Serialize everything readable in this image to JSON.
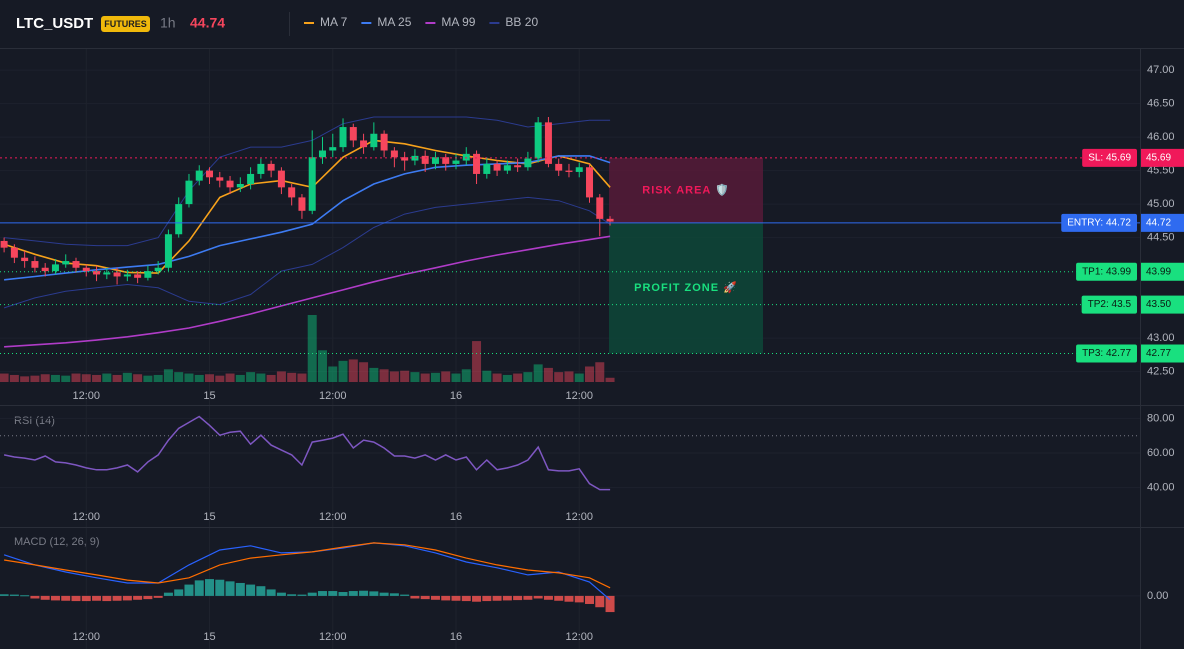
{
  "chart_data": {
    "type": "candlestick",
    "symbol": "LTC_USDT",
    "badge": "FUTURES",
    "interval": "1h",
    "last_price": 44.74,
    "x": [
      0,
      1,
      2,
      3,
      4,
      5,
      6,
      7,
      8,
      9,
      10,
      11,
      12,
      13,
      14,
      15,
      16,
      17,
      18,
      19,
      20,
      21,
      22,
      23,
      24,
      25,
      26,
      27,
      28,
      29,
      30,
      31,
      32,
      33,
      34,
      35,
      36,
      37,
      38,
      39,
      40,
      41,
      42,
      43,
      44,
      45,
      46,
      47,
      48,
      49,
      50,
      51,
      52,
      53,
      54,
      55,
      56,
      57,
      58,
      59
    ],
    "xlim": [
      -0.4,
      110.6
    ],
    "xticks": [
      {
        "value": 8,
        "label": "12:00"
      },
      {
        "value": 20,
        "label": "15"
      },
      {
        "value": 32,
        "label": "12:00"
      },
      {
        "value": 44,
        "label": "16"
      },
      {
        "value": 56,
        "label": "12:00"
      }
    ],
    "ylim": [
      42.3,
      47.3
    ],
    "yticks": [
      {
        "value": 47,
        "label": "47.00"
      },
      {
        "value": 46.5,
        "label": "46.50"
      },
      {
        "value": 46,
        "label": "46.00"
      },
      {
        "value": 45.5,
        "label": "45.50"
      },
      {
        "value": 45,
        "label": "45.00"
      },
      {
        "value": 44.5,
        "label": "44.50"
      },
      {
        "value": 43,
        "label": "43.00"
      },
      {
        "value": 42.5,
        "label": "42.50"
      }
    ],
    "up_color": "#0ecb81",
    "down_color": "#f6465d",
    "open": [
      44.45,
      44.35,
      44.2,
      44.15,
      44.05,
      44.0,
      44.1,
      44.15,
      44.05,
      44.0,
      43.95,
      43.98,
      43.92,
      43.95,
      43.9,
      44.0,
      44.05,
      44.55,
      45.0,
      45.35,
      45.5,
      45.4,
      45.35,
      45.25,
      45.3,
      45.45,
      45.6,
      45.5,
      45.25,
      45.1,
      44.9,
      45.7,
      45.8,
      45.85,
      46.15,
      45.95,
      45.85,
      46.05,
      45.8,
      45.7,
      45.65,
      45.72,
      45.6,
      45.7,
      45.6,
      45.65,
      45.75,
      45.45,
      45.6,
      45.5,
      45.58,
      45.55,
      45.68,
      46.22,
      45.6,
      45.5,
      45.48,
      45.55,
      45.1,
      44.78
    ],
    "high": [
      44.5,
      44.4,
      44.3,
      44.22,
      44.12,
      44.18,
      44.25,
      44.2,
      44.1,
      44.08,
      44.05,
      44.05,
      44.02,
      44.0,
      44.08,
      44.15,
      44.62,
      45.1,
      45.45,
      45.58,
      45.55,
      45.48,
      45.42,
      45.4,
      45.55,
      45.68,
      45.65,
      45.55,
      45.3,
      45.15,
      46.1,
      46.0,
      46.05,
      46.28,
      46.2,
      46.05,
      46.22,
      46.1,
      45.85,
      45.78,
      45.82,
      45.8,
      45.78,
      45.75,
      45.75,
      45.85,
      45.8,
      45.7,
      45.65,
      45.65,
      45.68,
      45.78,
      46.3,
      46.3,
      45.68,
      45.6,
      45.62,
      45.6,
      45.15,
      44.82
    ],
    "low": [
      44.28,
      44.12,
      44.05,
      43.98,
      43.92,
      43.95,
      44.05,
      43.98,
      43.92,
      43.85,
      43.88,
      43.8,
      43.85,
      43.82,
      43.86,
      43.95,
      44.0,
      44.5,
      44.95,
      45.28,
      45.3,
      45.25,
      45.15,
      45.18,
      45.22,
      45.38,
      45.4,
      45.15,
      44.98,
      44.78,
      44.85,
      45.6,
      45.7,
      45.78,
      45.85,
      45.75,
      45.8,
      45.7,
      45.55,
      45.5,
      45.58,
      45.48,
      45.52,
      45.5,
      45.52,
      45.58,
      45.3,
      45.38,
      45.42,
      45.45,
      45.48,
      45.5,
      45.62,
      45.55,
      45.42,
      45.4,
      45.4,
      45.02,
      44.52,
      44.68
    ],
    "close": [
      44.35,
      44.2,
      44.15,
      44.05,
      44.0,
      44.1,
      44.15,
      44.05,
      44.0,
      43.95,
      43.98,
      43.92,
      43.95,
      43.9,
      44.0,
      44.05,
      44.55,
      45.0,
      45.35,
      45.5,
      45.4,
      45.35,
      45.25,
      45.3,
      45.45,
      45.6,
      45.5,
      45.25,
      45.1,
      44.9,
      45.7,
      45.8,
      45.85,
      46.15,
      45.95,
      45.85,
      46.05,
      45.8,
      45.7,
      45.65,
      45.72,
      45.6,
      45.7,
      45.6,
      45.65,
      45.75,
      45.45,
      45.6,
      45.5,
      45.58,
      45.55,
      45.68,
      46.22,
      45.6,
      45.5,
      45.48,
      45.55,
      45.1,
      44.78,
      44.74
    ],
    "volume": [
      12,
      10,
      8,
      9,
      11,
      10,
      9,
      12,
      11,
      10,
      12,
      10,
      13,
      11,
      9,
      10,
      18,
      14,
      12,
      10,
      11,
      9,
      12,
      10,
      14,
      12,
      10,
      15,
      13,
      12,
      95,
      45,
      22,
      30,
      32,
      28,
      20,
      18,
      15,
      16,
      14,
      12,
      13,
      15,
      12,
      18,
      58,
      16,
      12,
      10,
      12,
      14,
      25,
      20,
      14,
      15,
      12,
      22,
      28,
      6
    ],
    "overlays": [
      {
        "name": "MA 7",
        "color": "#f7a21b",
        "x": [
          0,
          3,
          6,
          9,
          12,
          15,
          18,
          21,
          24,
          27,
          30,
          33,
          36,
          39,
          42,
          45,
          48,
          51,
          54,
          57,
          59
        ],
        "values": [
          44.4,
          44.25,
          44.12,
          44.08,
          43.98,
          43.97,
          44.45,
          45.1,
          45.3,
          45.35,
          45.25,
          45.7,
          45.95,
          45.9,
          45.8,
          45.72,
          45.65,
          45.6,
          45.72,
          45.6,
          45.25
        ]
      },
      {
        "name": "MA 25",
        "color": "#3d7bf2",
        "x": [
          0,
          3,
          6,
          9,
          12,
          15,
          18,
          21,
          24,
          27,
          30,
          33,
          36,
          39,
          42,
          45,
          48,
          51,
          54,
          57,
          59
        ],
        "values": [
          43.87,
          43.92,
          43.97,
          44.02,
          44.06,
          44.1,
          44.22,
          44.38,
          44.48,
          44.58,
          44.7,
          45.05,
          45.3,
          45.45,
          45.55,
          45.58,
          45.6,
          45.62,
          45.72,
          45.72,
          45.62
        ]
      },
      {
        "name": "MA 99",
        "color": "#b03cc8",
        "x": [
          0,
          3,
          6,
          9,
          12,
          15,
          18,
          21,
          24,
          27,
          30,
          33,
          36,
          39,
          42,
          45,
          48,
          51,
          54,
          57,
          59
        ],
        "values": [
          42.87,
          42.9,
          42.93,
          42.97,
          43.02,
          43.08,
          43.15,
          43.25,
          43.36,
          43.48,
          43.6,
          43.72,
          43.84,
          43.95,
          44.05,
          44.15,
          44.24,
          44.32,
          44.4,
          44.47,
          44.52
        ]
      },
      {
        "name": "BB 20",
        "color": "#2b3b8f",
        "x": [
          0,
          3,
          6,
          9,
          12,
          15,
          18,
          21,
          24,
          27,
          30,
          33,
          36,
          39,
          42,
          45,
          48,
          51,
          54,
          57,
          59
        ],
        "upper": [
          44.5,
          44.45,
          44.4,
          44.38,
          44.38,
          44.5,
          45.2,
          45.7,
          45.85,
          45.85,
          45.95,
          46.2,
          46.3,
          46.3,
          46.3,
          46.3,
          46.25,
          46.15,
          46.2,
          46.25,
          46.25
        ],
        "lower": [
          43.45,
          43.6,
          43.7,
          43.75,
          43.8,
          43.75,
          43.55,
          43.5,
          43.65,
          44.0,
          44.1,
          44.35,
          44.65,
          44.85,
          44.95,
          45.0,
          45.05,
          45.1,
          45.05,
          44.9,
          44.7
        ]
      }
    ],
    "levels": [
      {
        "label": "SL: 45.69",
        "value": 45.69,
        "value_label": "45.69",
        "color": "#f0195a",
        "text_color": "#ffffff",
        "line_style": "dashed"
      },
      {
        "label": "ENTRY: 44.72",
        "value": 44.72,
        "value_label": "44.72",
        "color": "#2f6bf0",
        "text_color": "#ffffff",
        "line_style": "solid"
      },
      {
        "label": "TP1: 43.99",
        "value": 43.99,
        "value_label": "43.99",
        "color": "#19e07f",
        "text_color": "#0b1a12",
        "line_style": "dotted"
      },
      {
        "label": "TP2: 43.5",
        "value": 43.5,
        "value_label": "43.50",
        "color": "#19e07f",
        "text_color": "#0b1a12",
        "line_style": "dotted"
      },
      {
        "label": "TP3: 42.77",
        "value": 42.77,
        "value_label": "42.77",
        "color": "#19e07f",
        "text_color": "#0b1a12",
        "line_style": "dotted"
      }
    ],
    "zones": [
      {
        "label": "RISK AREA 🛡️",
        "from": 45.69,
        "to": 44.72,
        "color": "#f0195a",
        "fill": "#5a1a3a"
      },
      {
        "label": "PROFIT ZONE 🚀",
        "from": 44.72,
        "to": 42.77,
        "color": "#19e07f",
        "fill": "#0c4a3a"
      }
    ],
    "rsi": {
      "title": "RSI (14)",
      "color": "#7e57c2",
      "level": 70,
      "ylim": [
        30,
        86
      ],
      "yticks": [
        {
          "value": 80,
          "label": "80.00"
        },
        {
          "value": 60,
          "label": "60.00"
        },
        {
          "value": 40,
          "label": "40.00"
        }
      ],
      "values": [
        58.9,
        57.7,
        57.1,
        56.0,
        58.3,
        54.9,
        54.3,
        53.1,
        51.4,
        50.3,
        50.3,
        51.4,
        53.1,
        49.1,
        54.9,
        58.9,
        67.4,
        74.3,
        77.7,
        81.1,
        76.0,
        70.3,
        72.0,
        72.6,
        65.1,
        70.3,
        64.6,
        61.7,
        58.9,
        53.1,
        66.3,
        67.4,
        68.6,
        70.9,
        62.9,
        67.4,
        66.3,
        62.9,
        58.3,
        58.3,
        57.1,
        58.9,
        56.0,
        58.9,
        56.0,
        57.7,
        50.3,
        56.0,
        50.3,
        51.4,
        53.1,
        56.0,
        63.4,
        50.3,
        49.7,
        49.7,
        50.9,
        42.3,
        38.9,
        38.9
      ]
    },
    "macd": {
      "title": "MACD (12, 26, 9)",
      "ylim": [
        -0.09,
        0.21
      ],
      "yticks": [
        {
          "value": 0,
          "label": "0.00"
        }
      ],
      "lines": [
        {
          "color": "#2962ff",
          "x": [
            0,
            3,
            6,
            9,
            12,
            15,
            18,
            21,
            24,
            27,
            30,
            33,
            36,
            39,
            42,
            45,
            48,
            51,
            54,
            57,
            59
          ],
          "values": [
            0.127,
            0.096,
            0.074,
            0.056,
            0.04,
            0.04,
            0.096,
            0.142,
            0.155,
            0.133,
            0.136,
            0.148,
            0.164,
            0.155,
            0.133,
            0.105,
            0.087,
            0.065,
            0.074,
            0.043,
            -0.012
          ]
        },
        {
          "color": "#ff6d00",
          "x": [
            0,
            3,
            6,
            9,
            12,
            15,
            18,
            21,
            24,
            27,
            30,
            33,
            36,
            39,
            42,
            45,
            48,
            51,
            54,
            57,
            59
          ],
          "values": [
            0.111,
            0.096,
            0.08,
            0.065,
            0.049,
            0.04,
            0.056,
            0.096,
            0.117,
            0.127,
            0.136,
            0.151,
            0.164,
            0.158,
            0.142,
            0.117,
            0.096,
            0.08,
            0.071,
            0.056,
            0.025
          ]
        }
      ],
      "hist_up_color": "#26a69a",
      "hist_down_color": "#ef5350",
      "histogram": [
        0.005,
        0.004,
        0.002,
        -0.008,
        -0.012,
        -0.014,
        -0.015,
        -0.016,
        -0.016,
        -0.015,
        -0.016,
        -0.015,
        -0.014,
        -0.012,
        -0.01,
        -0.006,
        0.01,
        0.02,
        0.035,
        0.048,
        0.052,
        0.05,
        0.045,
        0.04,
        0.035,
        0.03,
        0.02,
        0.01,
        0.005,
        0.004,
        0.01,
        0.015,
        0.015,
        0.012,
        0.015,
        0.016,
        0.014,
        0.01,
        0.008,
        0.004,
        -0.008,
        -0.01,
        -0.012,
        -0.014,
        -0.015,
        -0.016,
        -0.018,
        -0.016,
        -0.015,
        -0.014,
        -0.013,
        -0.012,
        -0.008,
        -0.012,
        -0.015,
        -0.018,
        -0.02,
        -0.025,
        -0.035,
        -0.05
      ]
    }
  }
}
